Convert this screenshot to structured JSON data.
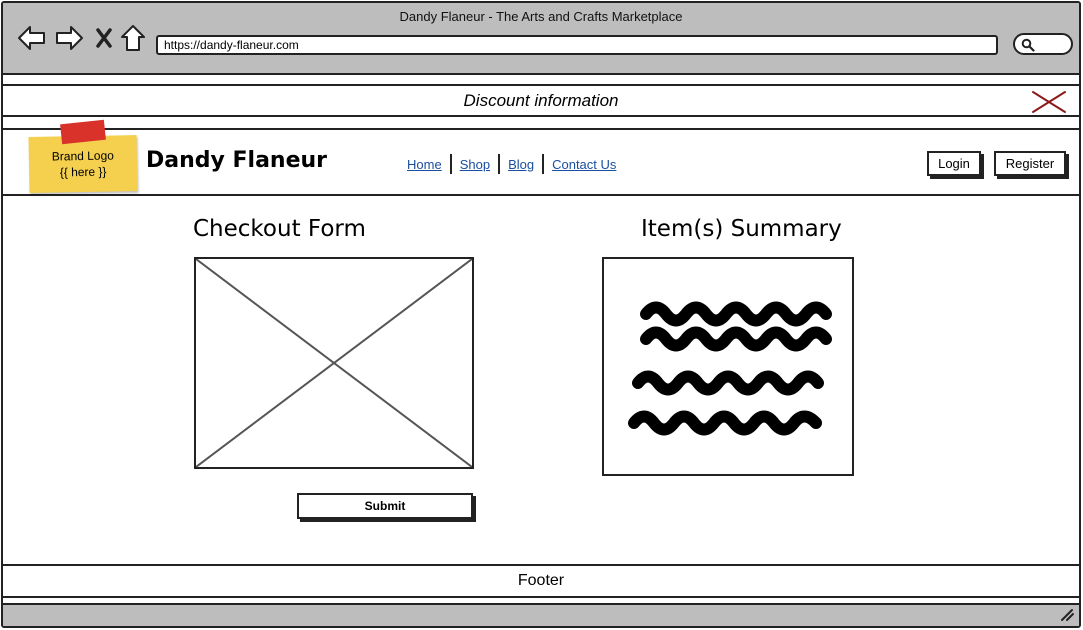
{
  "window": {
    "title": "Dandy Flaneur - The Arts and Crafts Marketplace"
  },
  "browser": {
    "url": "https://dandy-flaneur.com",
    "icons": [
      "back-icon",
      "forward-icon",
      "stop-icon",
      "home-icon",
      "search-icon"
    ]
  },
  "discount": {
    "text": "Discount information",
    "close_icon": "close-icon",
    "close_color": "#8b1a1a"
  },
  "header": {
    "logo_line1": "Brand Logo",
    "logo_line2": "{{ here }}",
    "brand_name": "Dandy Flaneur",
    "nav": [
      {
        "label": "Home"
      },
      {
        "label": "Shop"
      },
      {
        "label": "Blog"
      },
      {
        "label": "Contact Us"
      }
    ],
    "login_label": "Login",
    "register_label": "Register"
  },
  "checkout": {
    "title": "Checkout Form",
    "submit_label": "Submit"
  },
  "summary": {
    "title": "Item(s) Summary"
  },
  "footer": {
    "text": "Footer"
  },
  "colors": {
    "chrome": "#bdbdbd",
    "link": "#1a4fa0",
    "logo_note": "#f5d04e",
    "logo_tape": "#d9322b"
  }
}
